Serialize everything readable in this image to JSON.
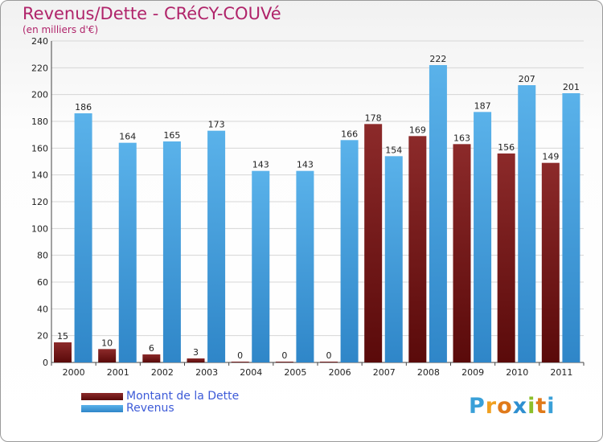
{
  "chart_data": {
    "type": "bar",
    "title": "Revenus/Dette - CRéCY-COUVé",
    "subtitle": "(en milliers d'€)",
    "categories": [
      "2000",
      "2001",
      "2002",
      "2003",
      "2004",
      "2005",
      "2006",
      "2007",
      "2008",
      "2009",
      "2010",
      "2011"
    ],
    "series": [
      {
        "name": "Montant de la Dette",
        "color": "#7a1a1a",
        "values": [
          15,
          10,
          6,
          3,
          0,
          0,
          0,
          178,
          169,
          163,
          156,
          149
        ]
      },
      {
        "name": "Revenus",
        "color": "#4aa3e0",
        "values": [
          186,
          164,
          165,
          173,
          143,
          143,
          166,
          154,
          222,
          187,
          207,
          201
        ]
      }
    ],
    "ylim": [
      0,
      240
    ],
    "yticks": [
      0,
      20,
      40,
      60,
      80,
      100,
      120,
      140,
      160,
      180,
      200,
      220,
      240
    ],
    "grid": true,
    "legend_position": "bottom-left"
  },
  "logo": {
    "letters": [
      "P",
      "r",
      "o",
      "x",
      "i",
      "t",
      "i"
    ],
    "colors": [
      "#3aa0d8",
      "#f0a020",
      "#e07a1a",
      "#2f8fd0",
      "#8cbf2a",
      "#e07a1a",
      "#3aa0d8"
    ]
  }
}
